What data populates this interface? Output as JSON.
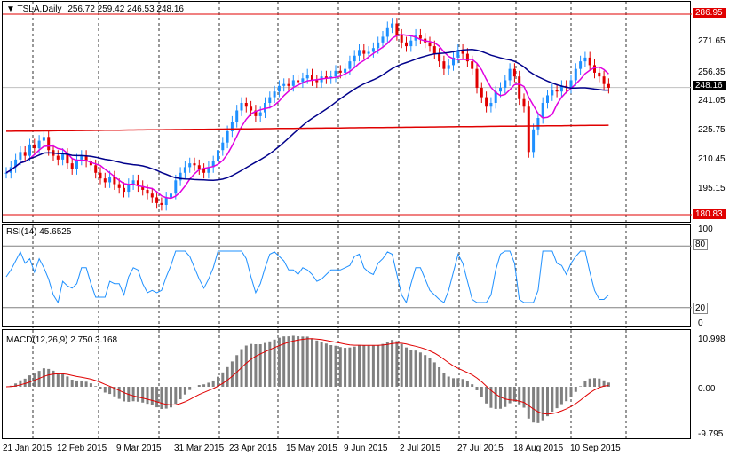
{
  "price_pane": {
    "symbol": "TSLA,Daily",
    "ohlc": "256.72 259.42 246.53 248.16",
    "ticks": [
      "286.95",
      "271.65",
      "256.35",
      "241.05",
      "225.75",
      "210.45",
      "195.15",
      "180.83"
    ],
    "current_price": "248.16",
    "level_high": "286.95",
    "level_low": "180.83"
  },
  "rsi_pane": {
    "title": "RSI(14) 45.6525",
    "ticks": [
      "100",
      "80",
      "20",
      "0"
    ]
  },
  "macd_pane": {
    "title": "MACD(12,26,9) 2.750 3.168",
    "ticks": [
      "10.998",
      "0.00",
      "-9.795"
    ]
  },
  "date_labels": [
    "21 Jan 2015",
    "12 Feb 2015",
    "9 Mar 2015",
    "31 Mar 2015",
    "23 Apr 2015",
    "15 May 2015",
    "9 Jun 2015",
    "2 Jul 2015",
    "27 Jul 2015",
    "18 Aug 2015",
    "10 Sep 2015"
  ],
  "colors": {
    "up_candle": "#1e90ff",
    "down_candle": "#e00000",
    "sma_fast": "#e000e0",
    "sma_mid": "#00008b",
    "sma_slow": "#e00000",
    "rsi_line": "#1e90ff",
    "macd_hist": "#808080",
    "macd_signal": "#e00000",
    "level_line": "#e00000",
    "level_tag_bg": "#e00000",
    "price_tag_bg": "#000000"
  },
  "chart_data": {
    "type": "candlestick",
    "symbol": "TSLA",
    "timeframe": "Daily",
    "ylim": [
      180.83,
      286.95
    ],
    "close_series": [
      203,
      206,
      210,
      214,
      212,
      218,
      216,
      220,
      222,
      215,
      212,
      210,
      213,
      208,
      205,
      210,
      212,
      209,
      207,
      203,
      200,
      198,
      201,
      197,
      195,
      193,
      197,
      199,
      196,
      194,
      192,
      190,
      187,
      186,
      190,
      192,
      199,
      203,
      206,
      208,
      207,
      205,
      203,
      206,
      209,
      215,
      219,
      225,
      230,
      236,
      240,
      238,
      236,
      233,
      235,
      240,
      243,
      246,
      249,
      250,
      249,
      252,
      251,
      253,
      255,
      252,
      251,
      254,
      253,
      254,
      257,
      256,
      258,
      262,
      265,
      268,
      266,
      267,
      269,
      272,
      275,
      280,
      282,
      276,
      272,
      270,
      273,
      276,
      274,
      272,
      270,
      266,
      262,
      258,
      260,
      264,
      268,
      266,
      262,
      258,
      248,
      243,
      238,
      240,
      246,
      248,
      252,
      258,
      254,
      242,
      238,
      214,
      226,
      232,
      240,
      244,
      247,
      246,
      249,
      248,
      252,
      258,
      262,
      264,
      260,
      256,
      254,
      250,
      248
    ]
  }
}
